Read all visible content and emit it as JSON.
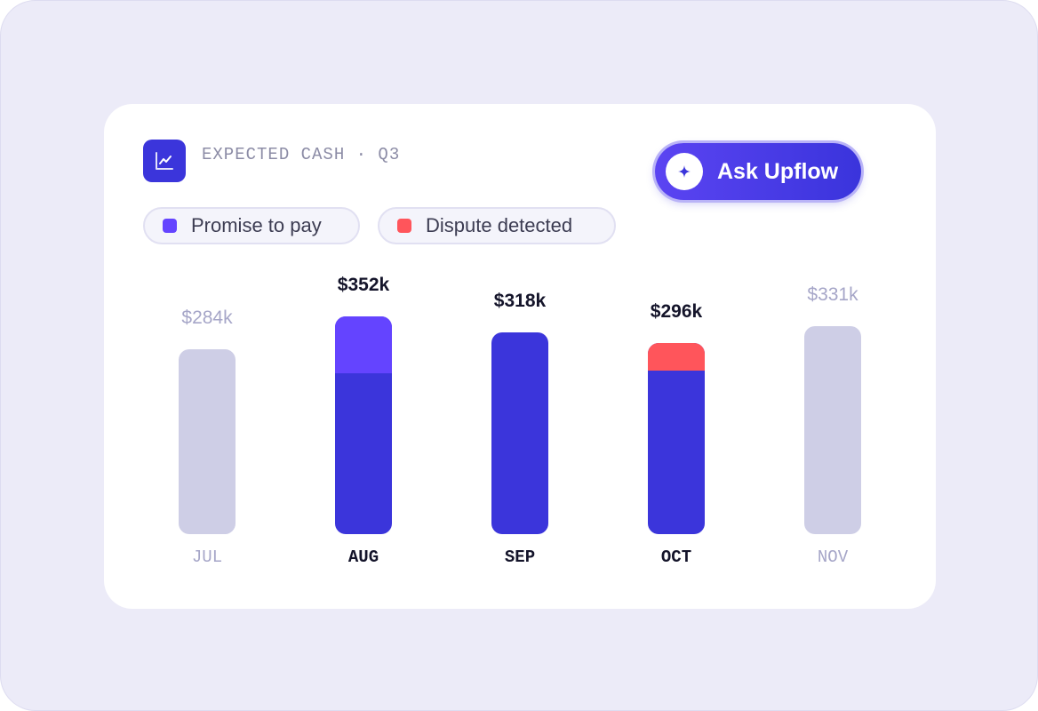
{
  "header": {
    "title": "EXPECTED CASH · Q3",
    "icon": "trend-chart-icon"
  },
  "ask_button": {
    "label": "Ask Upflow",
    "icon": "sparkle-icon"
  },
  "legend": [
    {
      "label": "Promise to pay",
      "color": "#6444FF"
    },
    {
      "label": "Dispute detected",
      "color": "#FF555B"
    }
  ],
  "colors": {
    "base": "#3B35DB",
    "promise": "#6444FF",
    "dispute": "#FF555B",
    "inactive": "#CECEE6",
    "inactive_text": "#A6A6C8",
    "active_text": "#14142A"
  },
  "chart_data": {
    "type": "bar",
    "categories": [
      "JUL",
      "AUG",
      "SEP",
      "OCT",
      "NOV"
    ],
    "value_labels": [
      "$284k",
      "$352k",
      "$318k",
      "$296k",
      "$331k"
    ],
    "values": [
      284,
      352,
      318,
      296,
      331
    ],
    "series": [
      {
        "name": "Promise to pay",
        "values": [
          0,
          116,
          0,
          0,
          0
        ]
      },
      {
        "name": "Dispute detected",
        "values": [
          0,
          0,
          0,
          56,
          0
        ]
      }
    ],
    "highlighted": [
      false,
      true,
      true,
      true,
      false
    ],
    "ylim": [
      0,
      352
    ],
    "units": "$k"
  }
}
